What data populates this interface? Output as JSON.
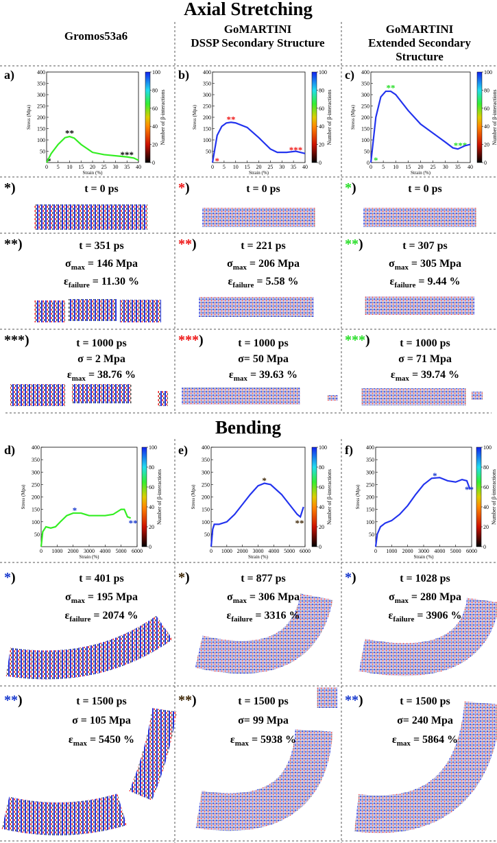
{
  "title_axial": "Axial Stretching",
  "title_bending": "Bending",
  "columns": [
    {
      "lines": [
        "Gromos53a6"
      ]
    },
    {
      "lines": [
        "GoMARTINI",
        "DSSP Secondary Structure"
      ]
    },
    {
      "lines": [
        "GoMARTINI",
        "Extended Secondary",
        "Structure"
      ]
    }
  ],
  "bracket": ")",
  "chart_data": [
    {
      "type": "line",
      "panel": "a)",
      "xlabel": "Strain (%)",
      "ylabel": "Stress (Mpa)",
      "x": [
        0,
        2,
        5,
        8,
        10,
        12,
        15,
        20,
        25,
        30,
        35,
        38,
        40
      ],
      "series": [
        {
          "color": "#33ee22",
          "values": [
            0,
            40,
            80,
            110,
            115,
            108,
            80,
            45,
            35,
            30,
            25,
            20,
            10
          ]
        }
      ],
      "xlim": [
        0,
        40
      ],
      "xticks": [
        0,
        5,
        10,
        15,
        20,
        25,
        30,
        35,
        40
      ],
      "ylim": [
        0,
        400
      ],
      "yticks": [
        50,
        100,
        150,
        200,
        250,
        300,
        350,
        400
      ],
      "colorbar": {
        "label": "Number of β-interactions",
        "lim": [
          0,
          100
        ],
        "ticks": [
          0,
          20,
          40,
          60,
          80,
          100
        ]
      },
      "annotations": [
        {
          "text": "*",
          "x": 1,
          "y": 12,
          "color": "#000000"
        },
        {
          "text": "**",
          "x": 10,
          "y": 135,
          "color": "#000000"
        },
        {
          "text": "***",
          "x": 35,
          "y": 40,
          "color": "#000000"
        }
      ]
    },
    {
      "type": "line",
      "panel": "b)",
      "xlabel": "Strain (%)",
      "ylabel": "Stress (Mpa)",
      "x": [
        0,
        1,
        2,
        4,
        6,
        8,
        10,
        15,
        20,
        25,
        28,
        32,
        36,
        40
      ],
      "series": [
        {
          "color": "#2233ee",
          "values": [
            0,
            60,
            120,
            160,
            175,
            178,
            175,
            155,
            110,
            60,
            45,
            45,
            50,
            40
          ]
        }
      ],
      "xlim": [
        0,
        40
      ],
      "xticks": [
        0,
        5,
        10,
        15,
        20,
        25,
        30,
        35,
        40
      ],
      "ylim": [
        0,
        400
      ],
      "yticks": [
        50,
        100,
        150,
        200,
        250,
        300,
        350,
        400
      ],
      "colorbar": {
        "label": "Number of β-interactions",
        "lim": [
          0,
          100
        ],
        "ticks": [
          0,
          20,
          40,
          60,
          80,
          100
        ]
      },
      "annotations": [
        {
          "text": "*",
          "x": 2,
          "y": 12,
          "color": "#ee1111"
        },
        {
          "text": "**",
          "x": 8,
          "y": 195,
          "color": "#ee1111"
        },
        {
          "text": "***",
          "x": 36,
          "y": 60,
          "color": "#ee1111"
        }
      ]
    },
    {
      "type": "line",
      "panel": "c)",
      "xlabel": "Strain (%)",
      "ylabel": "Stress (Mpa)",
      "x": [
        0,
        1,
        2,
        4,
        6,
        8,
        10,
        15,
        20,
        25,
        30,
        33,
        35,
        38,
        40
      ],
      "series": [
        {
          "color": "#2233ee",
          "values": [
            0,
            100,
            200,
            290,
            315,
            315,
            300,
            230,
            170,
            130,
            90,
            65,
            60,
            75,
            80
          ]
        }
      ],
      "xlim": [
        0,
        40
      ],
      "xticks": [
        0,
        5,
        10,
        15,
        20,
        25,
        30,
        35,
        40
      ],
      "ylim": [
        0,
        400
      ],
      "yticks": [
        0,
        50,
        100,
        150,
        200,
        250,
        300,
        350,
        400
      ],
      "colorbar": {
        "label": "Number of β-interactions",
        "lim": [
          0,
          100
        ],
        "ticks": [
          0,
          20,
          40,
          60,
          80,
          100
        ]
      },
      "annotations": [
        {
          "text": "*",
          "x": 2,
          "y": 15,
          "color": "#22dd22"
        },
        {
          "text": "**",
          "x": 8,
          "y": 335,
          "color": "#22dd22"
        },
        {
          "text": "***",
          "x": 36,
          "y": 80,
          "color": "#22dd22"
        }
      ]
    },
    {
      "type": "line",
      "panel": "d)",
      "xlabel": "Strain (%)",
      "ylabel": "Stress (Mpa)",
      "x": [
        0,
        100,
        300,
        600,
        900,
        1200,
        1600,
        2000,
        2500,
        3000,
        4000,
        4500,
        5000,
        5200,
        5400,
        5600
      ],
      "series": [
        {
          "color": "#33ee22",
          "values": [
            0,
            60,
            80,
            75,
            80,
            100,
            125,
            135,
            135,
            125,
            125,
            130,
            150,
            150,
            120,
            115
          ]
        }
      ],
      "xlim": [
        0,
        6000
      ],
      "xticks": [
        0,
        1000,
        2000,
        3000,
        4000,
        5000,
        6000
      ],
      "ylim": [
        0,
        400
      ],
      "yticks": [
        50,
        100,
        150,
        200,
        250,
        300,
        350,
        400
      ],
      "colorbar": {
        "label": "Number of β-interactions",
        "lim": [
          0,
          100
        ],
        "ticks": [
          0,
          20,
          40,
          60,
          80,
          100
        ]
      },
      "annotations": [
        {
          "text": "*",
          "x": 2100,
          "y": 150,
          "color": "#1133cc"
        },
        {
          "text": "**",
          "x": 5750,
          "y": 100,
          "color": "#1133cc"
        }
      ]
    },
    {
      "type": "line",
      "panel": "e)",
      "xlabel": "Strain (%)",
      "ylabel": "Stress (Mpa)",
      "x": [
        0,
        100,
        200,
        500,
        1000,
        1500,
        2000,
        2500,
        3000,
        3400,
        3800,
        4500,
        5000,
        5500,
        5700,
        5900
      ],
      "series": [
        {
          "color": "#2233ee",
          "values": [
            0,
            70,
            90,
            90,
            100,
            130,
            170,
            210,
            245,
            255,
            250,
            210,
            170,
            130,
            120,
            160
          ]
        }
      ],
      "xlim": [
        0,
        6000
      ],
      "xticks": [
        0,
        1000,
        2000,
        3000,
        4000,
        5000,
        6000
      ],
      "ylim": [
        0,
        400
      ],
      "yticks": [
        50,
        100,
        150,
        200,
        250,
        300,
        350,
        400
      ],
      "colorbar": {
        "label": "Number of β-interactions",
        "lim": [
          0,
          100
        ],
        "ticks": [
          0,
          20,
          40,
          60,
          80,
          100
        ]
      },
      "annotations": [
        {
          "text": "*",
          "x": 3400,
          "y": 270,
          "color": "#3a2200"
        },
        {
          "text": "**",
          "x": 5650,
          "y": 100,
          "color": "#3a2200"
        }
      ]
    },
    {
      "type": "line",
      "panel": "f)",
      "xlabel": "Strain (%)",
      "ylabel": "Stress (Mpa)",
      "x": [
        0,
        100,
        300,
        600,
        1000,
        1500,
        2000,
        2500,
        3000,
        3500,
        4000,
        4500,
        5000,
        5400,
        5700,
        5900
      ],
      "series": [
        {
          "color": "#2233ee",
          "values": [
            0,
            50,
            80,
            95,
            105,
            130,
            165,
            210,
            250,
            275,
            278,
            265,
            260,
            270,
            265,
            230
          ]
        }
      ],
      "xlim": [
        0,
        6000
      ],
      "xticks": [
        0,
        1000,
        2000,
        3000,
        4000,
        5000,
        6000
      ],
      "ylim": [
        0,
        400
      ],
      "yticks": [
        50,
        100,
        150,
        200,
        250,
        300,
        350,
        400
      ],
      "colorbar": {
        "label": "Number of β-interactions",
        "lim": [
          0,
          100
        ],
        "ticks": [
          0,
          20,
          40,
          60,
          80,
          100
        ]
      },
      "annotations": [
        {
          "text": "*",
          "x": 3700,
          "y": 290,
          "color": "#1133cc"
        },
        {
          "text": "**",
          "x": 5850,
          "y": 235,
          "color": "#1133cc"
        }
      ]
    }
  ],
  "rows": [
    {
      "cells": [
        {
          "marker": "*",
          "color": "#000000",
          "lines": [
            [
              {
                "t": "t = 0 ps"
              }
            ]
          ]
        },
        {
          "marker": "*",
          "color": "#ee1111",
          "lines": [
            [
              {
                "t": "t = 0 ps"
              }
            ]
          ]
        },
        {
          "marker": "*",
          "color": "#22dd22",
          "lines": [
            [
              {
                "t": "t = 0 ps"
              }
            ]
          ]
        }
      ]
    },
    {
      "cells": [
        {
          "marker": "**",
          "color": "#000000",
          "lines": [
            [
              {
                "t": "t = 351 ps"
              }
            ],
            [
              {
                "t": "σ"
              },
              {
                "t": "max",
                "sub": true
              },
              {
                "t": " = 146 Mpa"
              }
            ],
            [
              {
                "t": "ε"
              },
              {
                "t": "failure",
                "sub": true
              },
              {
                "t": " = 11.30 %"
              }
            ]
          ]
        },
        {
          "marker": "**",
          "color": "#ee1111",
          "lines": [
            [
              {
                "t": "t = 221 ps"
              }
            ],
            [
              {
                "t": "σ"
              },
              {
                "t": "max",
                "sub": true
              },
              {
                "t": " = 206 Mpa"
              }
            ],
            [
              {
                "t": "ε"
              },
              {
                "t": "failure",
                "sub": true
              },
              {
                "t": " = 5.58 %"
              }
            ]
          ]
        },
        {
          "marker": "**",
          "color": "#22dd22",
          "lines": [
            [
              {
                "t": "t = 307 ps"
              }
            ],
            [
              {
                "t": "σ"
              },
              {
                "t": "max",
                "sub": true
              },
              {
                "t": " = 305 Mpa"
              }
            ],
            [
              {
                "t": "ε"
              },
              {
                "t": "failure",
                "sub": true
              },
              {
                "t": " = 9.44 %"
              }
            ]
          ]
        }
      ]
    },
    {
      "cells": [
        {
          "marker": "***",
          "color": "#000000",
          "lines": [
            [
              {
                "t": "t = 1000 ps"
              }
            ],
            [
              {
                "t": "σ = 2 Mpa"
              }
            ],
            [
              {
                "t": "ε"
              },
              {
                "t": "max",
                "sub": true
              },
              {
                "t": " = 38.76 %"
              }
            ]
          ]
        },
        {
          "marker": "***",
          "color": "#ee1111",
          "lines": [
            [
              {
                "t": "t = 1000 ps"
              }
            ],
            [
              {
                "t": "σ= 50 Mpa"
              }
            ],
            [
              {
                "t": "ε"
              },
              {
                "t": "max",
                "sub": true
              },
              {
                "t": " = 39.63 %"
              }
            ]
          ]
        },
        {
          "marker": "***",
          "color": "#22dd22",
          "lines": [
            [
              {
                "t": "t = 1000 ps"
              }
            ],
            [
              {
                "t": "σ = 71 Mpa"
              }
            ],
            [
              {
                "t": "ε"
              },
              {
                "t": "max",
                "sub": true
              },
              {
                "t": " = 39.74 %"
              }
            ]
          ]
        }
      ]
    },
    {
      "cells": [
        {
          "marker": "*",
          "color": "#1133cc",
          "lines": [
            [
              {
                "t": "t = 401 ps"
              }
            ],
            [
              {
                "t": "σ"
              },
              {
                "t": "max",
                "sub": true
              },
              {
                "t": " = 195 Mpa"
              }
            ],
            [
              {
                "t": "ε"
              },
              {
                "t": "failure",
                "sub": true
              },
              {
                "t": " = 2074 %"
              }
            ]
          ]
        },
        {
          "marker": "*",
          "color": "#3a2200",
          "lines": [
            [
              {
                "t": "t = 877 ps"
              }
            ],
            [
              {
                "t": "σ"
              },
              {
                "t": "max",
                "sub": true
              },
              {
                "t": " = 306 Mpa"
              }
            ],
            [
              {
                "t": "ε"
              },
              {
                "t": "failure",
                "sub": true
              },
              {
                "t": " = 3316 %"
              }
            ]
          ]
        },
        {
          "marker": "*",
          "color": "#1133cc",
          "lines": [
            [
              {
                "t": "t = 1028 ps"
              }
            ],
            [
              {
                "t": "σ"
              },
              {
                "t": "max",
                "sub": true
              },
              {
                "t": " = 280 Mpa"
              }
            ],
            [
              {
                "t": "ε"
              },
              {
                "t": "failure",
                "sub": true
              },
              {
                "t": " = 3906 %"
              }
            ]
          ]
        }
      ]
    },
    {
      "cells": [
        {
          "marker": "**",
          "color": "#1133cc",
          "lines": [
            [
              {
                "t": "t = 1500 ps"
              }
            ],
            [
              {
                "t": "σ = 105 Mpa"
              }
            ],
            [
              {
                "t": "ε"
              },
              {
                "t": "max",
                "sub": true
              },
              {
                "t": " = 5450 %"
              }
            ]
          ]
        },
        {
          "marker": "**",
          "color": "#3a2200",
          "lines": [
            [
              {
                "t": "t = 1500 ps"
              }
            ],
            [
              {
                "t": "σ= 99 Mpa"
              }
            ],
            [
              {
                "t": "ε"
              },
              {
                "t": "max",
                "sub": true
              },
              {
                "t": " = 5938 %"
              }
            ]
          ]
        },
        {
          "marker": "**",
          "color": "#1133cc",
          "lines": [
            [
              {
                "t": "t = 1500 ps"
              }
            ],
            [
              {
                "t": "σ= 240 Mpa"
              }
            ],
            [
              {
                "t": "ε"
              },
              {
                "t": "max",
                "sub": true
              },
              {
                "t": " = 5864 %"
              }
            ]
          ]
        }
      ]
    }
  ]
}
